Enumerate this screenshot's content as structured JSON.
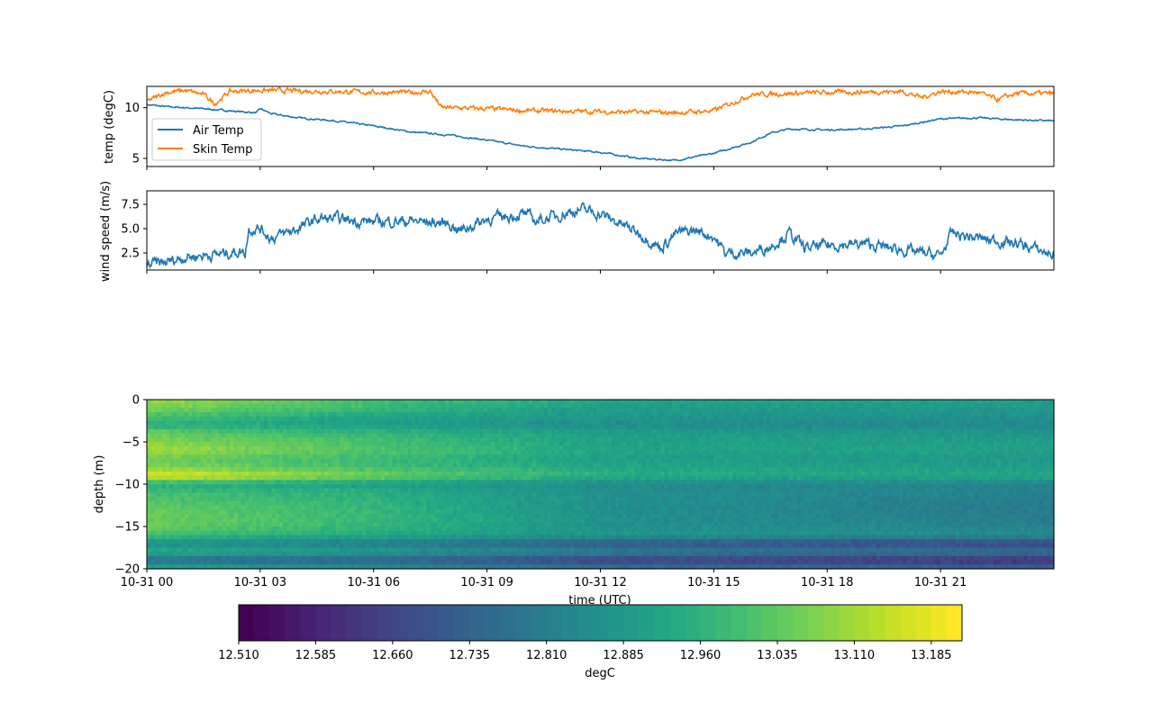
{
  "chart_data": [
    {
      "type": "line",
      "ylabel": "temp (degC)",
      "ylim": [
        4.2,
        12.1
      ],
      "yticks": [
        5,
        10
      ],
      "xlim_hours": [
        0,
        24
      ],
      "legend_placement": "lower-left",
      "series": [
        {
          "name": "Air Temp",
          "color": "#1f77b4",
          "points": [
            [
              0,
              10.3
            ],
            [
              0.5,
              10.1
            ],
            [
              1.5,
              9.9
            ],
            [
              2.5,
              9.6
            ],
            [
              2.9,
              9.5
            ],
            [
              3.0,
              9.9
            ],
            [
              3.3,
              9.4
            ],
            [
              4,
              9.0
            ],
            [
              5,
              8.7
            ],
            [
              6,
              8.2
            ],
            [
              7,
              7.6
            ],
            [
              8,
              7.3
            ],
            [
              9,
              6.8
            ],
            [
              10,
              6.2
            ],
            [
              11,
              5.9
            ],
            [
              12,
              5.6
            ],
            [
              13,
              5.0
            ],
            [
              14,
              4.8
            ],
            [
              15,
              5.5
            ],
            [
              16,
              6.6
            ],
            [
              16.5,
              7.5
            ],
            [
              17,
              7.9
            ],
            [
              18,
              7.8
            ],
            [
              19,
              7.9
            ],
            [
              20,
              8.2
            ],
            [
              21,
              8.9
            ],
            [
              22,
              9.0
            ],
            [
              23,
              8.8
            ],
            [
              24,
              8.7
            ]
          ]
        },
        {
          "name": "Skin Temp",
          "color": "#ff7f0e",
          "points": [
            [
              0,
              10.6
            ],
            [
              0.5,
              11.5
            ],
            [
              1,
              11.7
            ],
            [
              1.5,
              11.3
            ],
            [
              1.8,
              10.4
            ],
            [
              2.2,
              11.6
            ],
            [
              3,
              11.7
            ],
            [
              5,
              11.6
            ],
            [
              6,
              11.5
            ],
            [
              7,
              11.5
            ],
            [
              7.5,
              11.6
            ],
            [
              7.8,
              10.0
            ],
            [
              9,
              9.9
            ],
            [
              10,
              9.7
            ],
            [
              12,
              9.6
            ],
            [
              14,
              9.5
            ],
            [
              15,
              9.7
            ],
            [
              15.5,
              10.5
            ],
            [
              16,
              11.3
            ],
            [
              18,
              11.5
            ],
            [
              20,
              11.6
            ],
            [
              20.5,
              11.0
            ],
            [
              21,
              11.6
            ],
            [
              22,
              11.5
            ],
            [
              22.5,
              10.8
            ],
            [
              23,
              11.4
            ],
            [
              24,
              11.4
            ]
          ]
        }
      ]
    },
    {
      "type": "line",
      "ylabel": "wind speed (m/s)",
      "ylim": [
        0.74,
        8.9
      ],
      "yticks": [
        2.5,
        5.0,
        7.5
      ],
      "ytick_labels": [
        "2.5",
        "5.0",
        "7.5"
      ],
      "xlim_hours": [
        0,
        24
      ],
      "series": [
        {
          "name": "wind speed",
          "color": "#1f77b4",
          "points": [
            [
              0,
              1.3
            ],
            [
              0.5,
              1.5
            ],
            [
              1,
              2.1
            ],
            [
              2,
              2.4
            ],
            [
              2.5,
              2.7
            ],
            [
              2.6,
              2.5
            ],
            [
              2.7,
              5.0
            ],
            [
              3,
              5.0
            ],
            [
              3.3,
              4.0
            ],
            [
              4,
              5.0
            ],
            [
              4.5,
              6.0
            ],
            [
              5,
              6.0
            ],
            [
              6,
              5.7
            ],
            [
              7,
              5.8
            ],
            [
              8,
              5.5
            ],
            [
              8.3,
              4.8
            ],
            [
              9,
              6.0
            ],
            [
              10,
              6.5
            ],
            [
              10.3,
              5.8
            ],
            [
              11,
              6.5
            ],
            [
              11.5,
              7.0
            ],
            [
              12,
              6.5
            ],
            [
              13,
              4.6
            ],
            [
              13.6,
              3.0
            ],
            [
              14,
              4.5
            ],
            [
              14.5,
              4.8
            ],
            [
              15,
              4.2
            ],
            [
              15.3,
              2.5
            ],
            [
              16,
              2.5
            ],
            [
              16.5,
              3.2
            ],
            [
              17,
              4.5
            ],
            [
              17.4,
              3.0
            ],
            [
              18,
              3.3
            ],
            [
              19,
              3.4
            ],
            [
              20,
              2.8
            ],
            [
              21,
              2.2
            ],
            [
              21.3,
              4.5
            ],
            [
              22,
              4.0
            ],
            [
              23,
              3.5
            ],
            [
              24,
              2.3
            ]
          ]
        }
      ]
    },
    {
      "type": "heatmap",
      "xlabel": "time (UTC)",
      "ylabel": "depth (m)",
      "ylim": [
        -20,
        0
      ],
      "yticks": [
        0,
        -5,
        -10,
        -15,
        -20
      ],
      "ytick_labels": [
        "0",
        "−5",
        "−10",
        "−15",
        "−20"
      ],
      "xticks_hours": [
        0,
        3,
        6,
        9,
        12,
        15,
        18,
        21
      ],
      "xtick_labels": [
        "10-31 00",
        "10-31 03",
        "10-31 06",
        "10-31 09",
        "10-31 12",
        "10-31 15",
        "10-31 18",
        "10-31 21"
      ],
      "colormap": "viridis",
      "profile_depths": [
        0,
        -1,
        -2,
        -3,
        -4,
        -5,
        -6,
        -7,
        -8,
        -9,
        -10,
        -11,
        -12,
        -13,
        -14,
        -15,
        -16,
        -17,
        -18,
        -19,
        -20
      ],
      "profiles": [
        {
          "hour": 0,
          "values": [
            13.1,
            13.08,
            13.0,
            12.95,
            13.05,
            13.08,
            13.12,
            13.05,
            13.08,
            13.2,
            12.95,
            13.0,
            13.02,
            13.05,
            13.05,
            13.05,
            13.0,
            12.85,
            12.95,
            12.75,
            12.95
          ]
        },
        {
          "hour": 6,
          "values": [
            13.0,
            12.98,
            12.92,
            12.9,
            12.97,
            13.0,
            13.02,
            12.98,
            13.0,
            13.06,
            12.9,
            12.95,
            12.96,
            12.97,
            12.98,
            12.97,
            12.93,
            12.8,
            12.9,
            12.72,
            12.88
          ]
        },
        {
          "hour": 12.5,
          "values": [
            12.92,
            12.9,
            12.88,
            12.85,
            12.9,
            12.91,
            12.92,
            12.9,
            12.92,
            12.95,
            12.84,
            12.86,
            12.86,
            12.85,
            12.86,
            12.86,
            12.88,
            12.7,
            12.82,
            12.64,
            12.8
          ]
        },
        {
          "hour": 24,
          "values": [
            12.9,
            12.88,
            12.86,
            12.84,
            12.88,
            12.9,
            12.91,
            12.88,
            12.9,
            12.93,
            12.82,
            12.82,
            12.8,
            12.8,
            12.8,
            12.82,
            12.85,
            12.65,
            12.78,
            12.6,
            12.75
          ]
        }
      ],
      "colorbar": {
        "label": "degC",
        "min": 12.51,
        "max": 13.215,
        "step": 0.015,
        "ticks": [
          "12.510",
          "12.585",
          "12.660",
          "12.735",
          "12.810",
          "12.885",
          "12.960",
          "13.035",
          "13.110",
          "13.185"
        ]
      }
    }
  ]
}
